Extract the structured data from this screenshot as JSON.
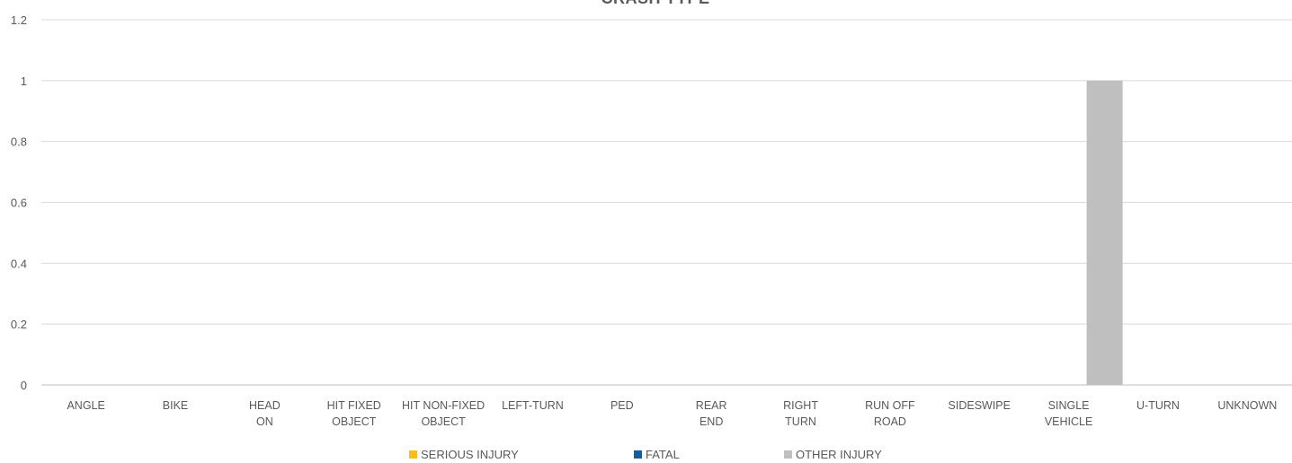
{
  "chart_data": {
    "type": "bar",
    "title": "CRASH TYPE",
    "xlabel": "",
    "ylabel": "",
    "ylim": [
      0,
      1.2
    ],
    "yticks": [
      "0",
      "0.2",
      "0.4",
      "0.6",
      "0.8",
      "1",
      "1.2"
    ],
    "grid": true,
    "legend_position": "bottom",
    "categories": [
      [
        "ANGLE"
      ],
      [
        "BIKE"
      ],
      [
        "HEAD",
        "ON"
      ],
      [
        "HIT FIXED",
        "OBJECT"
      ],
      [
        "HIT NON-FIXED",
        "OBJECT"
      ],
      [
        "LEFT-TURN"
      ],
      [
        "PED"
      ],
      [
        "REAR",
        "END"
      ],
      [
        "RIGHT",
        "TURN"
      ],
      [
        "RUN OFF",
        "ROAD"
      ],
      [
        "SIDESWIPE"
      ],
      [
        "SINGLE",
        "VEHICLE"
      ],
      [
        "U-TURN"
      ],
      [
        "UNKNOWN"
      ]
    ],
    "series": [
      {
        "name": "SERIOUS INJURY",
        "color": "#FFC000",
        "values": [
          0,
          0,
          0,
          0,
          0,
          0,
          0,
          0,
          0,
          0,
          0,
          0,
          0,
          0
        ]
      },
      {
        "name": "FATAL",
        "color": "#0F5FA6",
        "values": [
          0,
          0,
          0,
          0,
          0,
          0,
          0,
          0,
          0,
          0,
          0,
          0,
          0,
          0
        ]
      },
      {
        "name": "OTHER INJURY",
        "color": "#BFBFBF",
        "values": [
          0,
          0,
          0,
          0,
          0,
          0,
          0,
          0,
          0,
          0,
          0,
          1,
          0,
          0
        ]
      }
    ]
  }
}
